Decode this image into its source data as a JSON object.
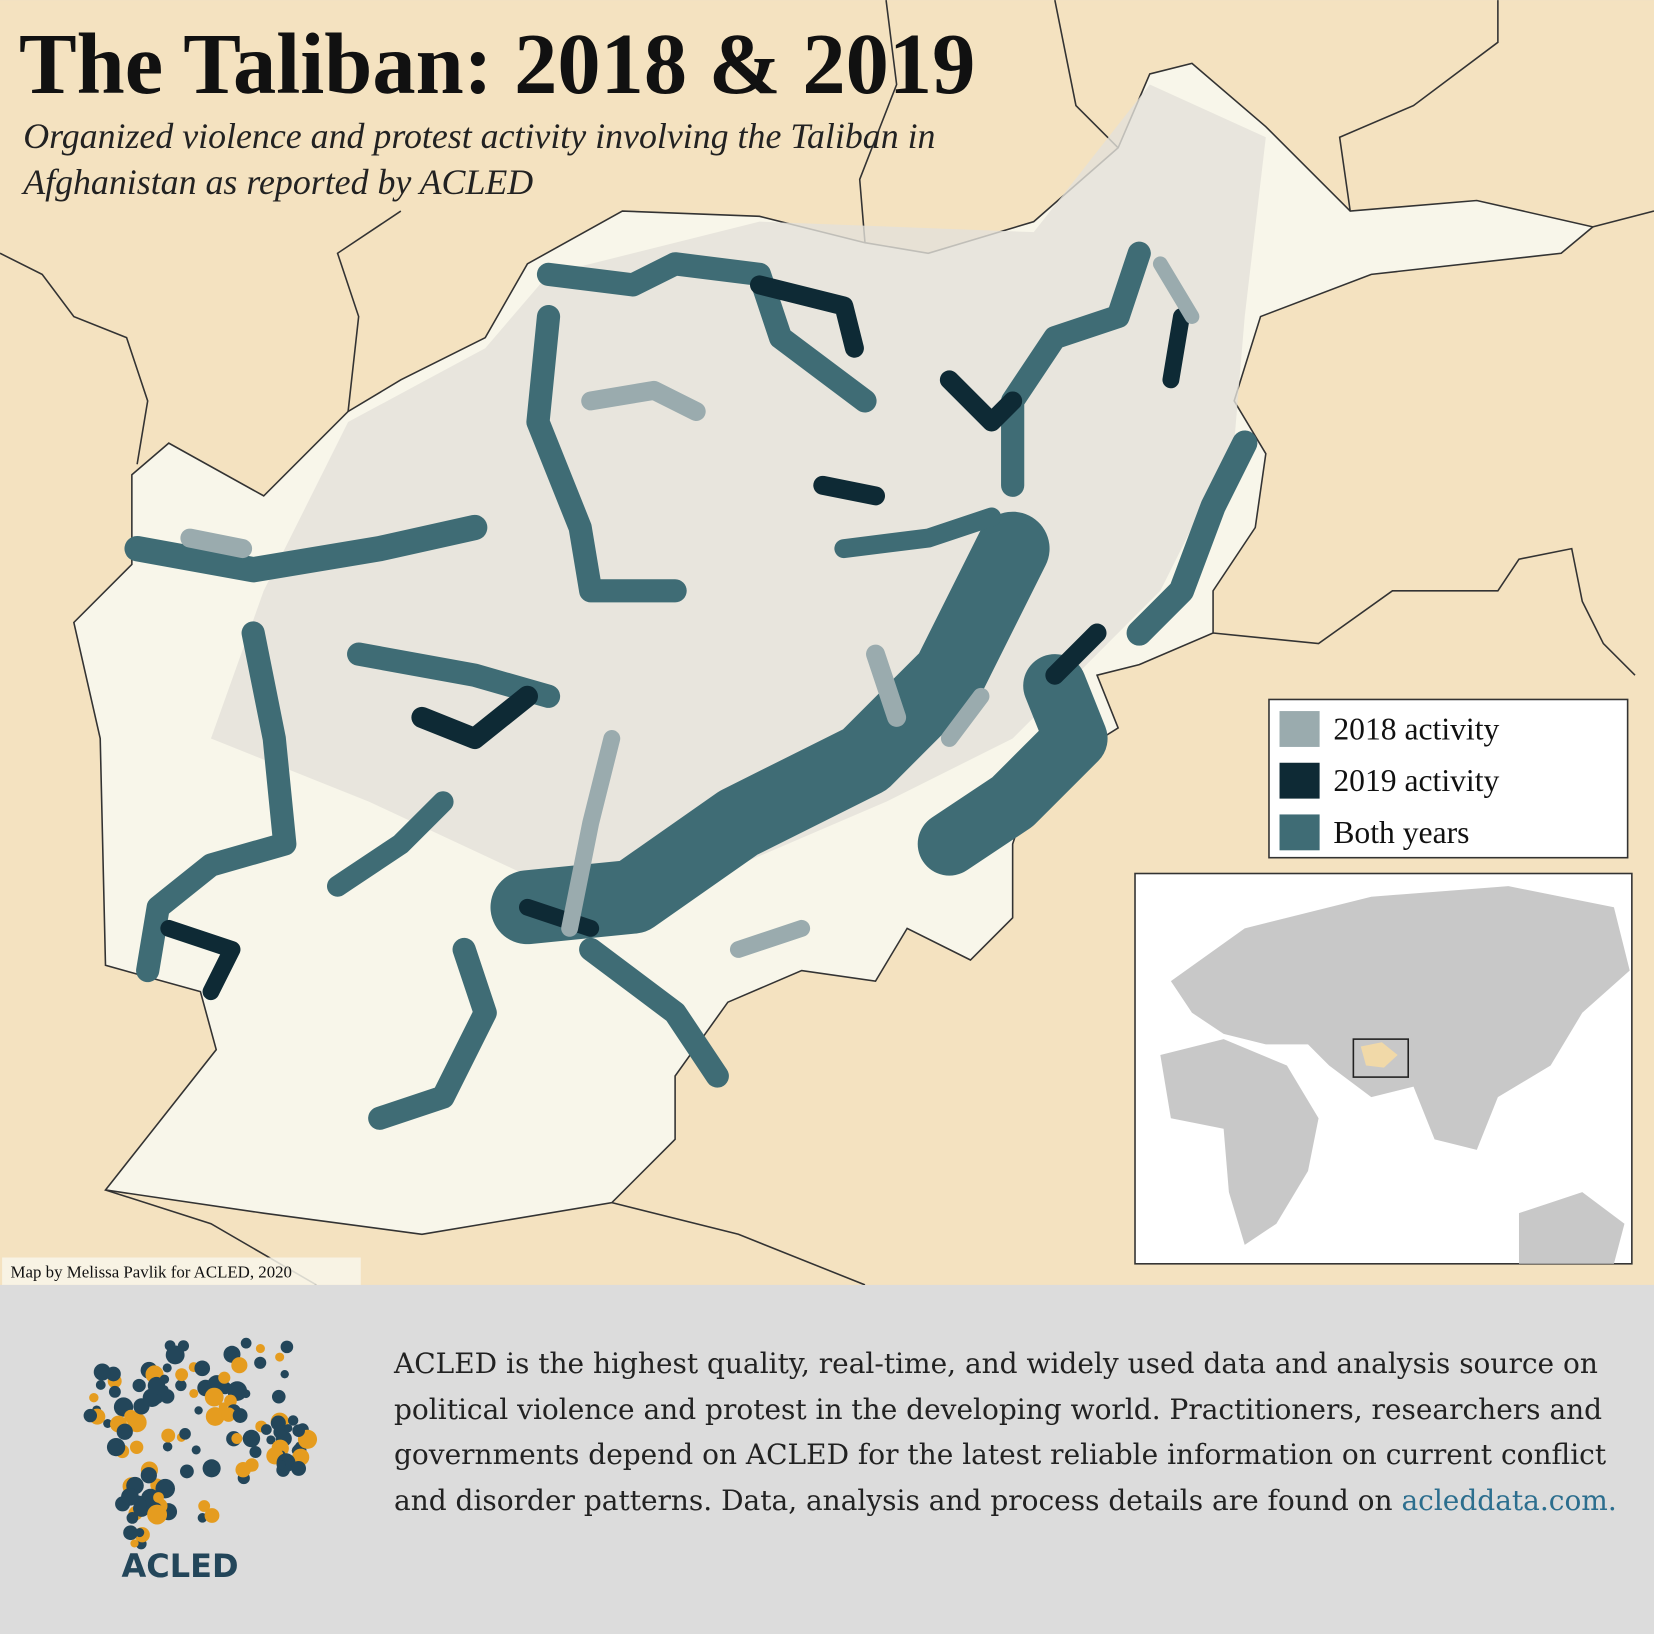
{
  "title": "The Taliban: 2018 & 2019",
  "subtitle_lines": [
    "Organized violence and protest activity involving the Taliban in",
    "Afghanistan as reported by ACLED"
  ],
  "legend": {
    "items": [
      {
        "label": "2018 activity",
        "color": "#9aabae"
      },
      {
        "label": "2019 activity",
        "color": "#0e2a35"
      },
      {
        "label": "Both years",
        "color": "#3f6c75"
      }
    ]
  },
  "credit": "Map by Melissa Pavlik for ACLED, 2020",
  "footer": {
    "logo_text": "ACLED",
    "description": "ACLED is the highest quality, real-time, and widely used data and analysis source on political violence and protest in the developing world. Practitioners, researchers and governments depend on ACLED for the latest reliable information on current conflict and disorder patterns. Data, analysis and process details are found on",
    "link": "acleddata.com."
  }
}
